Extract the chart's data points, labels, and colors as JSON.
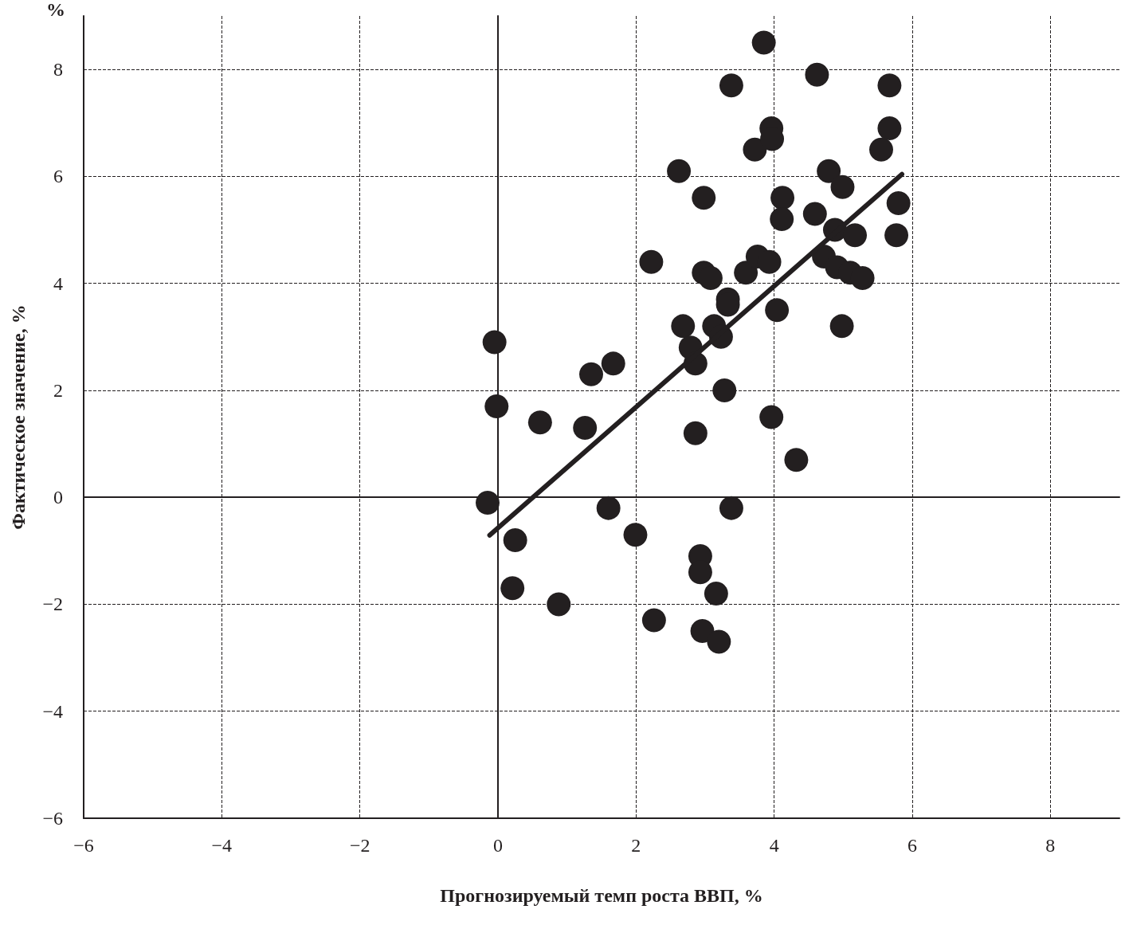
{
  "chart_data": {
    "type": "scatter",
    "xlabel": "Прогнозируемый темп роста ВВП, %",
    "ylabel": "Фактическое значение, %",
    "annotations": [
      "%"
    ],
    "xlim": [
      -6,
      9
    ],
    "ylim": [
      -6,
      9
    ],
    "xticks": [
      {
        "value": -6,
        "label": "−6"
      },
      {
        "value": -4,
        "label": "−4"
      },
      {
        "value": -2,
        "label": "−2"
      },
      0,
      2,
      4,
      6,
      8
    ],
    "yticks": [
      {
        "value": -6,
        "label": "−6"
      },
      {
        "value": -4,
        "label": "−4"
      },
      {
        "value": -2,
        "label": "−2"
      },
      0,
      2,
      4,
      6,
      8
    ],
    "grid": true,
    "marker": "circle",
    "series": [
      {
        "color": "#231f20",
        "x": [
          -0.15,
          -0.05,
          -0.02,
          0.25,
          0.21,
          0.61,
          0.88,
          1.26,
          1.35,
          1.67,
          1.6,
          1.99,
          2.22,
          2.26,
          2.62,
          2.68,
          2.79,
          2.86,
          2.86,
          2.98,
          2.98,
          3.08,
          2.93,
          2.93,
          2.96,
          3.13,
          3.23,
          3.16,
          3.2,
          3.28,
          3.33,
          3.33,
          3.38,
          3.38,
          3.59,
          3.72,
          3.76,
          3.85,
          3.93,
          3.96,
          3.97,
          3.96,
          4.04,
          4.12,
          4.11,
          4.32,
          4.59,
          4.62,
          4.72,
          4.79,
          4.88,
          4.91,
          4.98,
          4.99,
          5.1,
          5.17,
          5.28,
          5.55,
          5.67,
          5.67,
          5.8,
          5.77
        ],
        "values": [
          -0.1,
          2.9,
          1.7,
          -0.8,
          -1.7,
          1.4,
          -2.0,
          1.3,
          2.3,
          2.5,
          -0.2,
          -0.7,
          4.4,
          -2.3,
          6.1,
          3.2,
          2.8,
          2.5,
          1.2,
          5.6,
          4.2,
          4.1,
          -1.1,
          -1.4,
          -2.5,
          3.2,
          3.0,
          -1.8,
          -2.7,
          2.0,
          3.7,
          3.6,
          7.7,
          -0.2,
          4.2,
          6.5,
          4.5,
          8.5,
          4.4,
          6.9,
          6.7,
          1.5,
          3.5,
          5.6,
          5.2,
          0.7,
          5.3,
          7.9,
          4.5,
          6.1,
          5.0,
          4.3,
          3.2,
          5.8,
          4.2,
          4.9,
          4.1,
          6.5,
          6.9,
          7.7,
          5.5,
          4.9
        ]
      },
      {
        "type": "line",
        "color": "#231f20",
        "marker": "none",
        "x": [
          -0.12,
          5.85
        ],
        "values": [
          -0.71,
          6.04
        ]
      }
    ]
  }
}
